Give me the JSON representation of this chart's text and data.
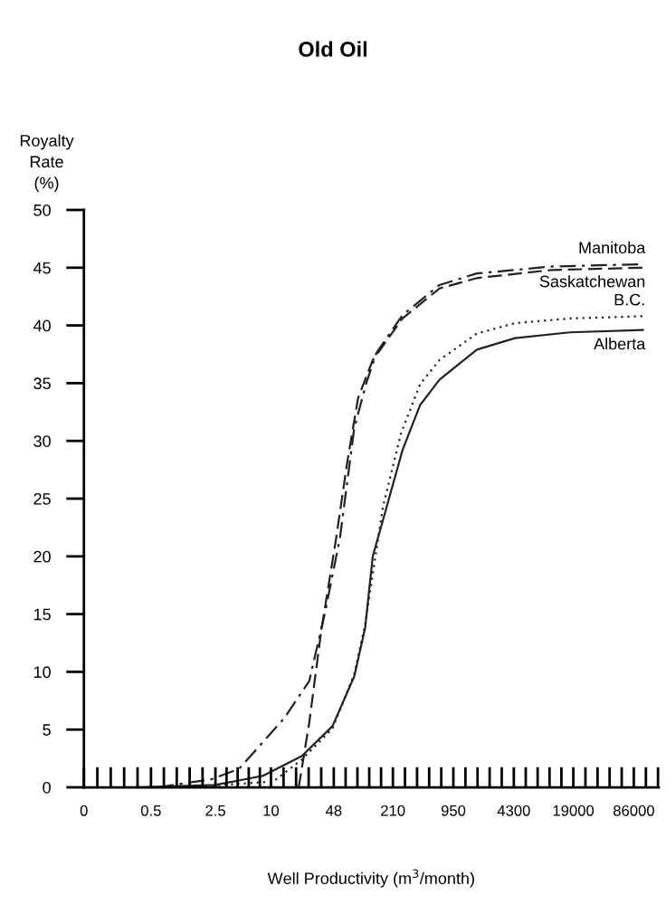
{
  "chart_data": {
    "type": "line",
    "title": "Old Oil",
    "ylabel": "Royalty\nRate\n(%)",
    "xlabel": "Well Productivity (m$^{3}$/month)",
    "xlim": [
      0,
      160000
    ],
    "ylim": [
      0,
      50
    ],
    "yticks": [
      0,
      5,
      10,
      15,
      20,
      25,
      30,
      35,
      40,
      45,
      50
    ],
    "xticks": [
      0,
      0.5,
      2.5,
      10,
      48,
      210,
      950,
      4300,
      19000,
      86000
    ],
    "log": "x",
    "grid": false,
    "legend": false,
    "marker": "none",
    "series": [
      {
        "name": "Manitoba",
        "color": "#222222",
        "line_style": "dashdot",
        "x": [
          0.59,
          2.27,
          4.5,
          14,
          26,
          38.5,
          56,
          80,
          108,
          139,
          267,
          671,
          1710,
          11000,
          108000
        ],
        "values": [
          0,
          0.7,
          1.6,
          6.0,
          9.2,
          15.1,
          21.6,
          31.1,
          35.0,
          37.6,
          40.9,
          43.5,
          44.5,
          45.1,
          45.3
        ]
      },
      {
        "name": "Saskatchewan",
        "color": "#222222",
        "line_style": "dashed",
        "x": [
          20,
          26,
          35,
          51,
          67,
          88,
          127,
          267,
          671,
          1710,
          11000,
          108000
        ],
        "values": [
          0,
          5.6,
          13.5,
          21.6,
          28.1,
          33.7,
          37.0,
          40.6,
          43.2,
          44.1,
          44.8,
          45.0
        ]
      },
      {
        "name": "B.C.",
        "color": "#222222",
        "line_style": "dotted",
        "x": [
          1.2,
          10.6,
          21.6,
          46.5,
          80,
          105,
          131,
          164,
          256,
          414,
          671,
          1710,
          4430,
          17400,
          108000
        ],
        "values": [
          0,
          0.5,
          2.4,
          5.1,
          9.8,
          14.1,
          19.2,
          24.3,
          30.6,
          34.9,
          37.0,
          39.3,
          40.2,
          40.6,
          40.8
        ]
      },
      {
        "name": "Alberta",
        "color": "#222222",
        "line_style": "solid",
        "x": [
          0.4,
          2.5,
          8.2,
          21.6,
          46.5,
          80,
          105,
          127,
          166,
          267,
          414,
          671,
          1710,
          4430,
          17400,
          108000
        ],
        "values": [
          0,
          0.2,
          1.0,
          2.7,
          5.3,
          9.6,
          13.8,
          20.0,
          23.3,
          29.2,
          33.1,
          35.3,
          37.9,
          38.9,
          39.4,
          39.6
        ]
      }
    ]
  }
}
